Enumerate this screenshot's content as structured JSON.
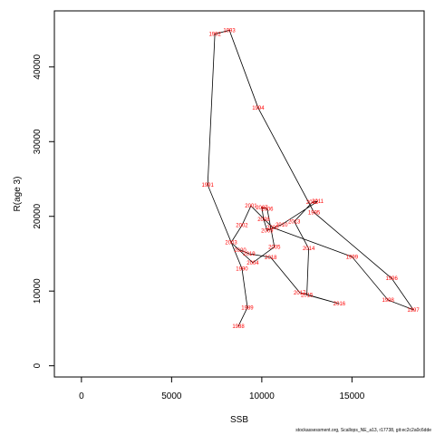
{
  "chart_data": {
    "type": "line",
    "title": "",
    "xlabel": "SSB",
    "ylabel": "R(age 3)",
    "xlim": [
      -1500,
      19000
    ],
    "ylim": [
      -1500,
      47500
    ],
    "xticks": [
      0,
      5000,
      10000,
      15000
    ],
    "yticks": [
      0,
      10000,
      20000,
      30000,
      40000
    ],
    "grid": false,
    "legend": "none",
    "line_color": "#000000",
    "label_color": "#ff0000",
    "series": [
      {
        "points": [
          {
            "year": "1988",
            "x": 8700,
            "y": 5300
          },
          {
            "year": "1989",
            "x": 9200,
            "y": 7800
          },
          {
            "year": "1990",
            "x": 8900,
            "y": 13000
          },
          {
            "year": "1991",
            "x": 7000,
            "y": 24200
          },
          {
            "year": "1992",
            "x": 7400,
            "y": 44400
          },
          {
            "year": "1993",
            "x": 8200,
            "y": 44900
          },
          {
            "year": "1994",
            "x": 9800,
            "y": 34500
          },
          {
            "year": "1995",
            "x": 12900,
            "y": 20500
          },
          {
            "year": "1996",
            "x": 17200,
            "y": 11700
          },
          {
            "year": "1997",
            "x": 18400,
            "y": 7500
          },
          {
            "year": "1998",
            "x": 17000,
            "y": 8800
          },
          {
            "year": "1999",
            "x": 15000,
            "y": 14600
          },
          {
            "year": "2000",
            "x": 10600,
            "y": 18500
          },
          {
            "year": "2001",
            "x": 9400,
            "y": 21400
          },
          {
            "year": "2002",
            "x": 8900,
            "y": 18800
          },
          {
            "year": "2003",
            "x": 8300,
            "y": 16500
          },
          {
            "year": "2004",
            "x": 9500,
            "y": 13800
          },
          {
            "year": "2005",
            "x": 10700,
            "y": 15900
          },
          {
            "year": "2006",
            "x": 10300,
            "y": 21000
          },
          {
            "year": "2007",
            "x": 10000,
            "y": 21200
          },
          {
            "year": "2008",
            "x": 10100,
            "y": 19600
          },
          {
            "year": "2009",
            "x": 10300,
            "y": 18100
          },
          {
            "year": "2010",
            "x": 11100,
            "y": 18900
          },
          {
            "year": "2011",
            "x": 13100,
            "y": 22000
          },
          {
            "year": "2012",
            "x": 12800,
            "y": 21900
          },
          {
            "year": "2013",
            "x": 11800,
            "y": 19300
          },
          {
            "year": "2014",
            "x": 12600,
            "y": 15700
          },
          {
            "year": "2015",
            "x": 12500,
            "y": 9500
          },
          {
            "year": "2016",
            "x": 14300,
            "y": 8300
          },
          {
            "year": "2017",
            "x": 12100,
            "y": 9800
          },
          {
            "year": "2018",
            "x": 10500,
            "y": 14500
          },
          {
            "year": "2019",
            "x": 9300,
            "y": 15000
          },
          {
            "year": "2020",
            "x": 8800,
            "y": 15500
          }
        ]
      }
    ]
  },
  "footer": {
    "credit": "stockassessment.org, Scallops_NE_a13, r17738, git:ec2c2a0c6dde"
  }
}
